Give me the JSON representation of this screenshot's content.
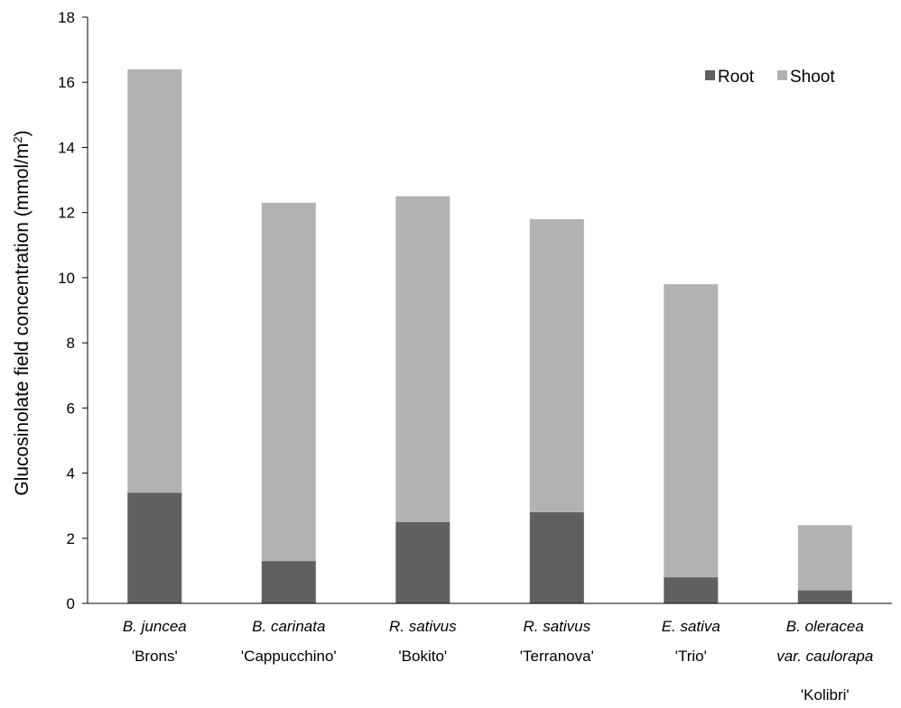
{
  "chart_data": {
    "type": "bar",
    "stacked": true,
    "ylabel_main": "Glucosinolate field concentration (mmol/m",
    "ylabel_sup": "2",
    "ylabel_end": ")",
    "ylim": [
      0,
      18
    ],
    "yticks": [
      "0",
      "2",
      "4",
      "6",
      "8",
      "10",
      "12",
      "14",
      "16",
      "18"
    ],
    "grid": false,
    "legend_position": "top-right",
    "categories": [
      {
        "lines": [
          "B. juncea",
          "'Brons'"
        ],
        "italic": [
          true,
          false
        ]
      },
      {
        "lines": [
          "B. carinata",
          "'Cappucchino'"
        ],
        "italic": [
          true,
          false
        ]
      },
      {
        "lines": [
          "R. sativus",
          "'Bokito'"
        ],
        "italic": [
          true,
          false
        ]
      },
      {
        "lines": [
          "R. sativus",
          "'Terranova'"
        ],
        "italic": [
          true,
          false
        ]
      },
      {
        "lines": [
          "E. sativa",
          "'Trio'"
        ],
        "italic": [
          true,
          false
        ]
      },
      {
        "lines": [
          "B. oleracea",
          "var. caulorapa",
          "'Kolibri'"
        ],
        "italic": [
          true,
          true,
          false
        ]
      }
    ],
    "series": [
      {
        "name": "Root",
        "color": "#606060",
        "values": [
          3.4,
          1.3,
          2.5,
          2.8,
          0.8,
          0.4
        ]
      },
      {
        "name": "Shoot",
        "color": "#b2b2b2",
        "values": [
          13.0,
          11.0,
          10.0,
          9.0,
          9.0,
          2.0
        ]
      }
    ]
  }
}
